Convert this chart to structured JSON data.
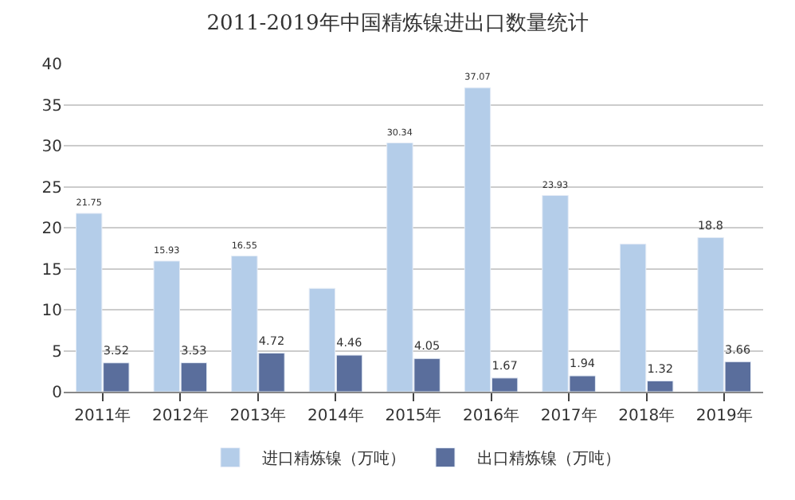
{
  "chart_data": {
    "type": "bar",
    "title": "2011-2019年中国精炼镍进出口数量统计",
    "categories": [
      "2011年",
      "2012年",
      "2013年",
      "2014年",
      "2015年",
      "2016年",
      "2017年",
      "2018年",
      "2019年"
    ],
    "series": [
      {
        "name": "进口精炼镍（万吨）",
        "color": "#b4cde9",
        "values": [
          21.75,
          15.93,
          16.55,
          12.6,
          30.34,
          37.07,
          23.93,
          18.0,
          18.8
        ],
        "value_labels": [
          "21.75",
          "15.93",
          "16.55",
          null,
          "30.34",
          "37.07",
          "23.93",
          null,
          "18.8"
        ]
      },
      {
        "name": "出口精炼镍（万吨）",
        "color": "#5a6e9c",
        "values": [
          3.52,
          3.53,
          4.72,
          4.46,
          4.05,
          1.67,
          1.94,
          1.32,
          3.66
        ],
        "value_labels": [
          "3.52",
          "3.53",
          "4.72",
          "4.46",
          "4.05",
          "1.67",
          "1.94",
          "1.32",
          "3.66"
        ]
      }
    ],
    "ylim": [
      0,
      40
    ],
    "yticks": [
      0,
      5,
      10,
      15,
      20,
      25,
      30,
      35,
      40
    ],
    "grid": "y",
    "legend": "bottom"
  }
}
